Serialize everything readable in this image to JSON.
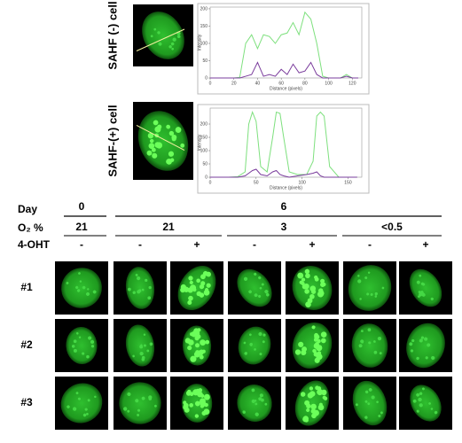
{
  "panels": [
    {
      "label": "SAHF (-) cell"
    },
    {
      "label": "SAHF-(+) cell"
    }
  ],
  "chart_data": [
    {
      "type": "line",
      "x_label": "Distance (pixels)",
      "y_label": "Intensity",
      "x": [
        0,
        10,
        20,
        25,
        30,
        35,
        40,
        45,
        50,
        55,
        60,
        65,
        70,
        75,
        80,
        85,
        90,
        95,
        100,
        110,
        115,
        120,
        125
      ],
      "series": [
        {
          "color": "#7ee07e",
          "values": [
            0,
            0,
            0,
            2,
            100,
            125,
            85,
            125,
            120,
            100,
            125,
            130,
            160,
            125,
            190,
            170,
            100,
            5,
            0,
            0,
            10,
            0,
            0
          ]
        },
        {
          "color": "#7a3c9c",
          "values": [
            0,
            0,
            0,
            0,
            5,
            10,
            45,
            5,
            10,
            5,
            25,
            10,
            40,
            15,
            20,
            45,
            10,
            0,
            0,
            0,
            5,
            0,
            0
          ]
        }
      ],
      "xlim": [
        0,
        128
      ],
      "ylim": [
        0,
        205
      ],
      "xticks": [
        0,
        20,
        40,
        60,
        80,
        100,
        120
      ],
      "yticks": [
        0,
        50,
        100,
        150,
        200
      ]
    },
    {
      "type": "line",
      "x_label": "Distance (pixels)",
      "y_label": "Intensity",
      "x": [
        0,
        20,
        30,
        38,
        42,
        46,
        50,
        55,
        62,
        68,
        72,
        76,
        80,
        86,
        95,
        105,
        112,
        116,
        120,
        124,
        130,
        140,
        150,
        160
      ],
      "series": [
        {
          "color": "#7ee07e",
          "values": [
            0,
            0,
            2,
            20,
            200,
            245,
            210,
            40,
            20,
            150,
            245,
            240,
            150,
            20,
            10,
            10,
            60,
            230,
            245,
            230,
            40,
            0,
            0,
            0
          ]
        },
        {
          "color": "#7a3c9c",
          "values": [
            0,
            0,
            0,
            5,
            15,
            25,
            30,
            10,
            5,
            20,
            25,
            10,
            5,
            0,
            5,
            10,
            15,
            20,
            5,
            0,
            0,
            0,
            0,
            0
          ]
        }
      ],
      "xlim": [
        0,
        165
      ],
      "ylim": [
        0,
        260
      ],
      "xticks": [
        0,
        50,
        100,
        150
      ],
      "yticks": [
        0,
        50,
        100,
        150,
        200
      ]
    }
  ],
  "table": {
    "row_headers": [
      "Day",
      "O₂ %",
      "4-OHT"
    ],
    "day": [
      "0",
      "6"
    ],
    "o2": [
      "21",
      "21",
      "3",
      "<0.5"
    ],
    "treatment": [
      "-",
      "-",
      "+",
      "-",
      "+",
      "-",
      "+"
    ],
    "samples": [
      "#1",
      "#2",
      "#3"
    ]
  }
}
